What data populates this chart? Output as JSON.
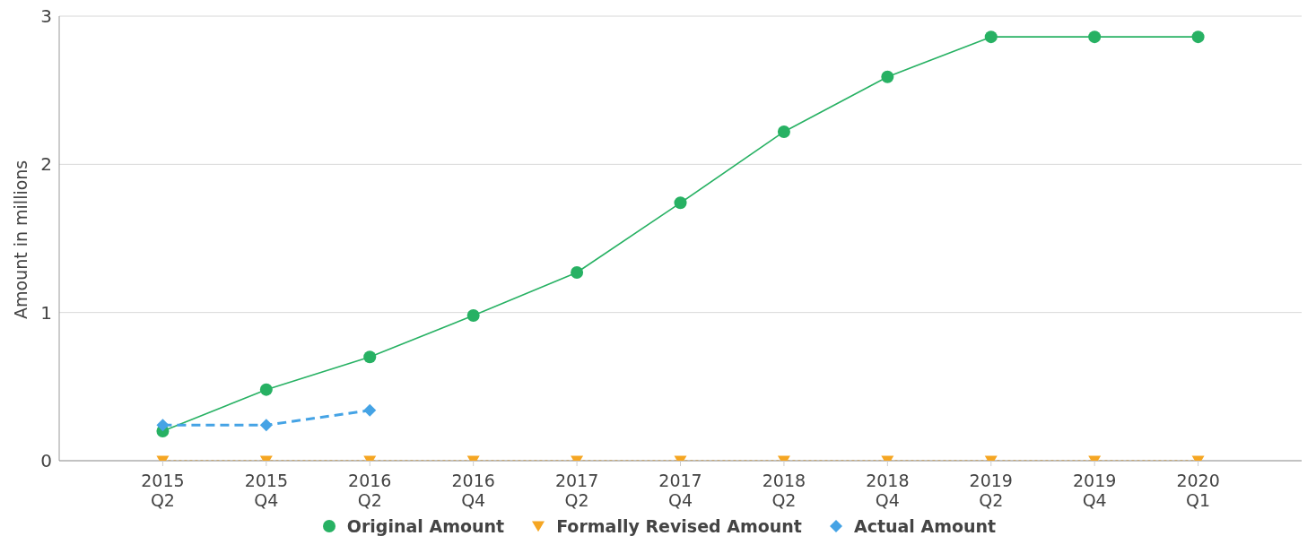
{
  "chart_data": {
    "type": "line",
    "ylabel": "Amount in millions",
    "categories": [
      "2015\nQ2",
      "2015\nQ4",
      "2016\nQ2",
      "2016\nQ4",
      "2017\nQ2",
      "2017\nQ4",
      "2018\nQ2",
      "2018\nQ4",
      "2019\nQ2",
      "2019\nQ4",
      "2020\nQ1"
    ],
    "series": [
      {
        "name": "Original Amount",
        "color": "#27b163",
        "marker": "circle",
        "line_style": "solid",
        "values": [
          0.2,
          0.48,
          0.7,
          0.98,
          1.27,
          1.74,
          2.22,
          2.59,
          2.86,
          2.86,
          2.86
        ]
      },
      {
        "name": "Formally Revised Amount",
        "color": "#f5a623",
        "marker": "triangle",
        "line_style": "dotted",
        "values": [
          0,
          0,
          0,
          0,
          0,
          0,
          0,
          0,
          0,
          0,
          0
        ]
      },
      {
        "name": "Actual Amount",
        "color": "#45a3e5",
        "marker": "diamond",
        "line_style": "dashed",
        "values": [
          0.24,
          0.24,
          0.34,
          null,
          null,
          null,
          null,
          null,
          null,
          null,
          null
        ]
      }
    ],
    "ylim": [
      0,
      3
    ],
    "yticks": [
      0,
      1,
      2,
      3
    ],
    "grid": "y",
    "legend": "bottom"
  }
}
